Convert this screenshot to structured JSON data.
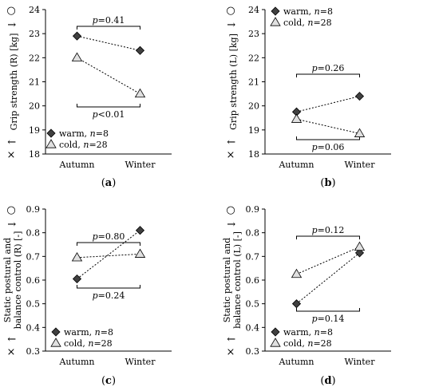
{
  "panels_meta": {
    "good_symbol": "○",
    "bad_symbol": "×",
    "up_arrow": "↑",
    "down_arrow": "↓"
  },
  "chart_data": [
    {
      "type": "line",
      "panel_label": "(a)",
      "categories": [
        "Autumn",
        "Winter"
      ],
      "ylabel": "Grip strength (R) [kg]",
      "ylim": [
        18,
        24
      ],
      "yticks": [
        "18",
        "19",
        "20",
        "21",
        "22",
        "23",
        "24"
      ],
      "legend": "bottom-left",
      "series": [
        {
          "name": "warm, n=8",
          "marker": "diamond",
          "values": [
            22.9,
            22.3
          ]
        },
        {
          "name": "cold, n=28",
          "marker": "triangle",
          "values": [
            22.0,
            20.5
          ]
        }
      ],
      "annotations": [
        {
          "text": "p=0.41",
          "position": "above"
        },
        {
          "text": "p<0.01",
          "position": "below"
        }
      ]
    },
    {
      "type": "line",
      "panel_label": "(b)",
      "categories": [
        "Autumn",
        "Winter"
      ],
      "ylabel": "Grip strength (L) [kg]",
      "ylim": [
        18,
        24
      ],
      "yticks": [
        "18",
        "19",
        "20",
        "21",
        "22",
        "23",
        "24"
      ],
      "legend": "top-left",
      "series": [
        {
          "name": "warm, n=8",
          "marker": "diamond",
          "values": [
            19.75,
            20.4
          ]
        },
        {
          "name": "cold, n=28",
          "marker": "triangle",
          "values": [
            19.45,
            18.85
          ]
        }
      ],
      "annotations": [
        {
          "text": "p=0.26",
          "position": "above"
        },
        {
          "text": "p=0.06",
          "position": "below"
        }
      ]
    },
    {
      "type": "line",
      "panel_label": "(c)",
      "categories": [
        "Autumn",
        "Winter"
      ],
      "ylabel": "Static postural and balance control (R) [-]",
      "ylim": [
        0.3,
        0.9
      ],
      "yticks": [
        "0.3",
        "0.4",
        "0.5",
        "0.6",
        "0.7",
        "0.8",
        "0.9"
      ],
      "legend": "bottom-left",
      "series": [
        {
          "name": "warm, n=8",
          "marker": "diamond",
          "values": [
            0.605,
            0.81
          ]
        },
        {
          "name": "cold, n=28",
          "marker": "triangle",
          "values": [
            0.695,
            0.71
          ]
        }
      ],
      "annotations": [
        {
          "text": "p=0.80",
          "position": "above"
        },
        {
          "text": "p=0.24",
          "position": "below"
        }
      ]
    },
    {
      "type": "line",
      "panel_label": "(d)",
      "categories": [
        "Autumn",
        "Winter"
      ],
      "ylabel": "Static postural and balance control (L) [-]",
      "ylim": [
        0.3,
        0.9
      ],
      "yticks": [
        "0.3",
        "0.4",
        "0.5",
        "0.6",
        "0.7",
        "0.8",
        "0.9"
      ],
      "legend": "bottom-left",
      "series": [
        {
          "name": "warm, n=8",
          "marker": "diamond",
          "values": [
            0.5,
            0.715
          ]
        },
        {
          "name": "cold, n=28",
          "marker": "triangle",
          "values": [
            0.625,
            0.74
          ]
        }
      ],
      "annotations": [
        {
          "text": "p=0.12",
          "position": "above"
        },
        {
          "text": "p=0.14",
          "position": "below"
        }
      ]
    }
  ]
}
